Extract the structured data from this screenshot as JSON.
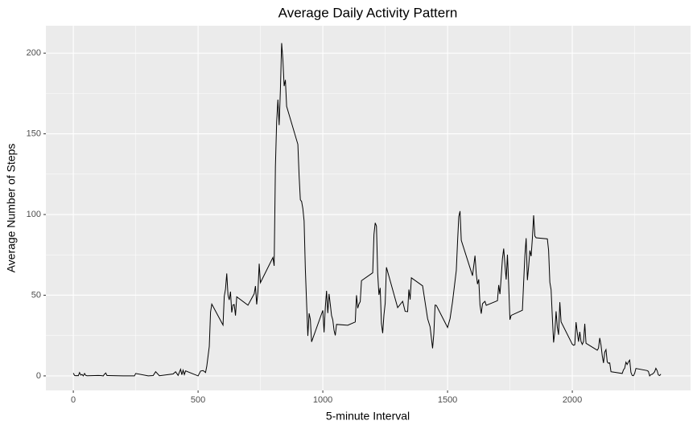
{
  "chart_data": {
    "type": "line",
    "title": "Average Daily Activity Pattern",
    "x_label": "5-minute Interval",
    "y_label": "Average Number of Steps",
    "xlim": [
      -110,
      2474
    ],
    "ylim": [
      -9,
      217
    ],
    "xticks": [
      0,
      500,
      1000,
      1500,
      2000
    ],
    "yticks": [
      0,
      50,
      100,
      150,
      200
    ],
    "grid": true,
    "minor_grid": true,
    "panel_color": "#ebebeb",
    "x": [
      0,
      5,
      10,
      15,
      20,
      25,
      30,
      35,
      40,
      45,
      50,
      55,
      100,
      110,
      120,
      125,
      130,
      135,
      140,
      200,
      230,
      245,
      250,
      300,
      320,
      330,
      345,
      400,
      410,
      420,
      430,
      435,
      440,
      445,
      450,
      500,
      510,
      520,
      530,
      535,
      545,
      550,
      555,
      600,
      605,
      610,
      615,
      620,
      625,
      630,
      635,
      640,
      645,
      650,
      655,
      700,
      725,
      730,
      735,
      740,
      745,
      750,
      800,
      805,
      810,
      815,
      820,
      825,
      830,
      835,
      840,
      845,
      850,
      855,
      900,
      905,
      910,
      915,
      920,
      925,
      930,
      935,
      940,
      945,
      950,
      955,
      1000,
      1005,
      1010,
      1015,
      1020,
      1025,
      1030,
      1035,
      1040,
      1045,
      1050,
      1055,
      1100,
      1130,
      1135,
      1140,
      1145,
      1150,
      1155,
      1200,
      1205,
      1210,
      1215,
      1220,
      1225,
      1230,
      1235,
      1240,
      1245,
      1250,
      1255,
      1300,
      1320,
      1330,
      1340,
      1345,
      1350,
      1355,
      1400,
      1420,
      1430,
      1440,
      1445,
      1450,
      1455,
      1500,
      1510,
      1520,
      1535,
      1540,
      1545,
      1550,
      1555,
      1600,
      1610,
      1615,
      1620,
      1625,
      1630,
      1635,
      1640,
      1645,
      1650,
      1655,
      1700,
      1705,
      1710,
      1715,
      1720,
      1725,
      1730,
      1735,
      1740,
      1745,
      1750,
      1755,
      1800,
      1805,
      1810,
      1815,
      1820,
      1825,
      1830,
      1835,
      1840,
      1845,
      1850,
      1855,
      1900,
      1905,
      1910,
      1915,
      1920,
      1925,
      1930,
      1935,
      1940,
      1945,
      1950,
      1955,
      2000,
      2005,
      2010,
      2015,
      2020,
      2025,
      2030,
      2035,
      2040,
      2045,
      2050,
      2055,
      2100,
      2105,
      2110,
      2115,
      2120,
      2125,
      2130,
      2135,
      2140,
      2145,
      2150,
      2155,
      2200,
      2205,
      2210,
      2215,
      2220,
      2225,
      2230,
      2235,
      2240,
      2245,
      2250,
      2255,
      2300,
      2305,
      2310,
      2315,
      2320,
      2325,
      2330,
      2335,
      2340,
      2345,
      2350,
      2355
    ],
    "series": [
      {
        "color": "#000000",
        "values": [
          1.7,
          0.3,
          0.1,
          0.2,
          0.1,
          2.1,
          0.5,
          0.9,
          0,
          1.5,
          0.3,
          0.1,
          0.3,
          0.2,
          0,
          1.1,
          1.8,
          0.2,
          0.2,
          0,
          0,
          0,
          1.5,
          0,
          0.2,
          2.6,
          0.1,
          1.2,
          2.6,
          0.3,
          4.1,
          0.7,
          3.5,
          0.8,
          3.1,
          0,
          3,
          3.3,
          2.1,
          6.1,
          18.3,
          39.5,
          44.5,
          31.5,
          49.3,
          53.8,
          63.5,
          50,
          47.1,
          52.2,
          39.3,
          44,
          44.2,
          37.4,
          49,
          43.8,
          50.9,
          55.7,
          44.3,
          52.3,
          69.5,
          57.8,
          73.4,
          68.2,
          129.4,
          157.5,
          171.2,
          155.4,
          177.3,
          206.2,
          195.9,
          179.6,
          183.4,
          167,
          143.5,
          124,
          109.1,
          108.1,
          103.7,
          96,
          66.2,
          45.2,
          24.8,
          38.8,
          35,
          21.1,
          40.6,
          27,
          42.4,
          52.7,
          38.9,
          50.8,
          44.3,
          37.4,
          34.7,
          28.3,
          25.1,
          31.9,
          31.4,
          33.4,
          50,
          42,
          44.6,
          46,
          59,
          63.9,
          87.6,
          94.8,
          92.8,
          63.4,
          50.2,
          54.5,
          32.4,
          26.5,
          37.7,
          45,
          67.3,
          42.3,
          46.2,
          40,
          39.8,
          53.5,
          47.3,
          60.8,
          55.8,
          35.5,
          30.4,
          17.1,
          26.1,
          43.9,
          43.7,
          30,
          35.5,
          46,
          65.3,
          82.9,
          98.7,
          102.1,
          84,
          62.1,
          74.5,
          63.2,
          56.9,
          59.8,
          43.9,
          38.6,
          44.7,
          45.5,
          46.2,
          43.7,
          46.6,
          56.3,
          50.7,
          61.2,
          72.7,
          78.9,
          68.9,
          59.7,
          75.1,
          56.5,
          34.8,
          37.5,
          40.7,
          58,
          74.7,
          85.3,
          59.3,
          67.8,
          77.7,
          74.2,
          85.3,
          99.5,
          86.6,
          85.6,
          84.9,
          77.8,
          58,
          53.4,
          36.3,
          20.7,
          27.4,
          40,
          30.2,
          25.5,
          45.7,
          33.5,
          19.6,
          19,
          19.3,
          33.3,
          26.8,
          21.2,
          27.3,
          21.3,
          19.5,
          21.3,
          32.3,
          20.2,
          15.9,
          17.2,
          23.5,
          19.2,
          12.5,
          8,
          14.7,
          16.3,
          8.7,
          7.8,
          8.1,
          2.6,
          1.5,
          3.7,
          4.8,
          8.5,
          7.1,
          8.7,
          9.8,
          2.2,
          0.3,
          0.1,
          1.6,
          4.6,
          3.3,
          2.8,
          0,
          0.8,
          1,
          1.6,
          2.6,
          4.7,
          3.3,
          0.6,
          0.2,
          1.1
        ]
      }
    ]
  }
}
